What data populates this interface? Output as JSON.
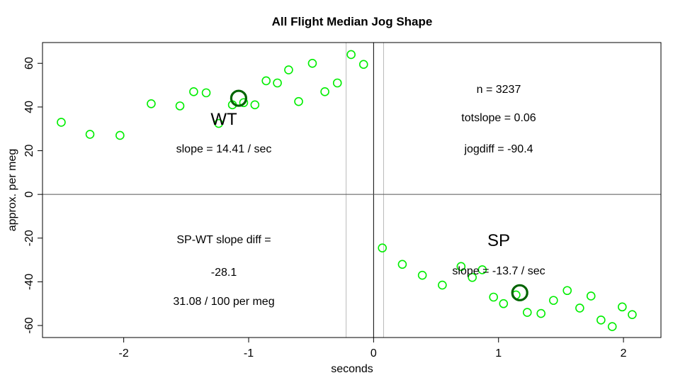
{
  "chart_data": {
    "type": "scatter",
    "title": "All Flight Median Jog Shape",
    "xlabel": "seconds",
    "ylabel": "approx. per meg",
    "xlim": [
      -2.65,
      2.3
    ],
    "ylim": [
      -65.5,
      69.5
    ],
    "x_ticks": [
      -2,
      -1,
      0,
      1,
      2
    ],
    "y_ticks": [
      -60,
      -40,
      -20,
      0,
      20,
      40,
      60
    ],
    "x_tick_labels": [
      "-2",
      "-1",
      "0",
      "1",
      "2"
    ],
    "y_tick_labels": [
      "-60",
      "-40",
      "-20",
      "0",
      "20",
      "40",
      "60"
    ],
    "grid": false,
    "reference_lines": {
      "h_zero": 0,
      "v_zero": 0,
      "v_grey": [
        -0.22,
        0.08
      ]
    },
    "colors": {
      "points": "#00ee00",
      "medians": "#006400",
      "axes": "#000000",
      "ref_grey": "#bbbbbb",
      "ref_zero": "#555555"
    },
    "wt_points": [
      [
        -2.5,
        33
      ],
      [
        -2.27,
        27.5
      ],
      [
        -2.03,
        27
      ],
      [
        -1.78,
        41.5
      ],
      [
        -1.55,
        40.5
      ],
      [
        -1.44,
        47
      ],
      [
        -1.34,
        46.5
      ],
      [
        -1.24,
        32.5
      ],
      [
        -1.13,
        41
      ],
      [
        -1.04,
        42
      ],
      [
        -0.95,
        41
      ],
      [
        -0.86,
        52
      ],
      [
        -0.77,
        51
      ],
      [
        -0.68,
        57
      ],
      [
        -0.6,
        42.5
      ],
      [
        -0.49,
        60
      ],
      [
        -0.39,
        47
      ],
      [
        -0.29,
        51
      ],
      [
        -0.18,
        64
      ],
      [
        -0.08,
        59.5
      ]
    ],
    "sp_points": [
      [
        0.07,
        -24.5
      ],
      [
        0.23,
        -32
      ],
      [
        0.39,
        -37
      ],
      [
        0.55,
        -41.5
      ],
      [
        0.7,
        -33
      ],
      [
        0.79,
        -38
      ],
      [
        0.87,
        -34.5
      ],
      [
        0.96,
        -47
      ],
      [
        1.04,
        -50
      ],
      [
        1.14,
        -46
      ],
      [
        1.23,
        -54
      ],
      [
        1.34,
        -54.5
      ],
      [
        1.44,
        -48.5
      ],
      [
        1.55,
        -44
      ],
      [
        1.65,
        -52
      ],
      [
        1.74,
        -46.5
      ],
      [
        1.82,
        -57.5
      ],
      [
        1.91,
        -60.5
      ],
      [
        1.99,
        -51.5
      ],
      [
        2.07,
        -55
      ]
    ],
    "wt_median": [
      -1.08,
      44
    ],
    "sp_median": [
      1.17,
      -45
    ],
    "annotations": {
      "wt_label": "WT",
      "wt_slope": "slope = 14.41 / sec",
      "n": "n = 3237",
      "totslope": "totslope = 0.06",
      "jogdiff": "jogdiff = -90.4",
      "sp_label": "SP",
      "sp_slope": "slope = -13.7 / sec",
      "slope_diff_label": "SP-WT slope diff =",
      "slope_diff_value": "-28.1",
      "per_meg": "31.08 / 100 per meg"
    }
  }
}
